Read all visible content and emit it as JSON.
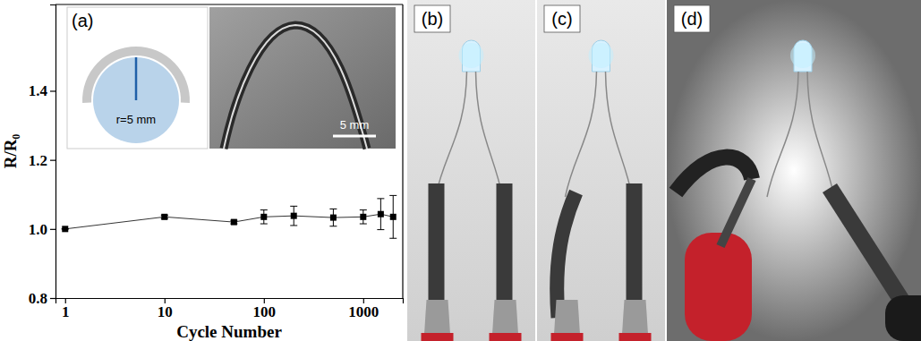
{
  "chart_data": {
    "type": "line",
    "panel_label": "(a)",
    "x_label": "Cycle Number",
    "y_label": "R/R₀",
    "x": [
      1,
      10,
      50,
      100,
      200,
      500,
      1000,
      1500,
      2000
    ],
    "values": [
      1.0,
      1.035,
      1.02,
      1.035,
      1.038,
      1.033,
      1.035,
      1.043,
      1.035
    ],
    "errors": [
      0.0,
      0.005,
      0.005,
      0.02,
      0.028,
      0.025,
      0.02,
      0.045,
      0.062
    ],
    "color": "#000000",
    "marker": "square",
    "line_style": "solid",
    "log": "x",
    "grid": false,
    "xlim": [
      0.8,
      2500
    ],
    "xticks": [
      1,
      10,
      100,
      1000
    ],
    "ylim": [
      0.8,
      1.65
    ],
    "yticks": [
      {
        "value": 0.8,
        "label": "0.8"
      },
      {
        "value": 1.0,
        "label": "1.0"
      },
      {
        "value": 1.2,
        "label": "1.2"
      },
      {
        "value": 1.4,
        "label": "1.4"
      }
    ],
    "annotations": [
      "r=5 mm",
      "5 mm"
    ]
  },
  "photos": [
    {
      "label": "(b)"
    },
    {
      "label": "(c)"
    },
    {
      "label": "(d)"
    }
  ]
}
